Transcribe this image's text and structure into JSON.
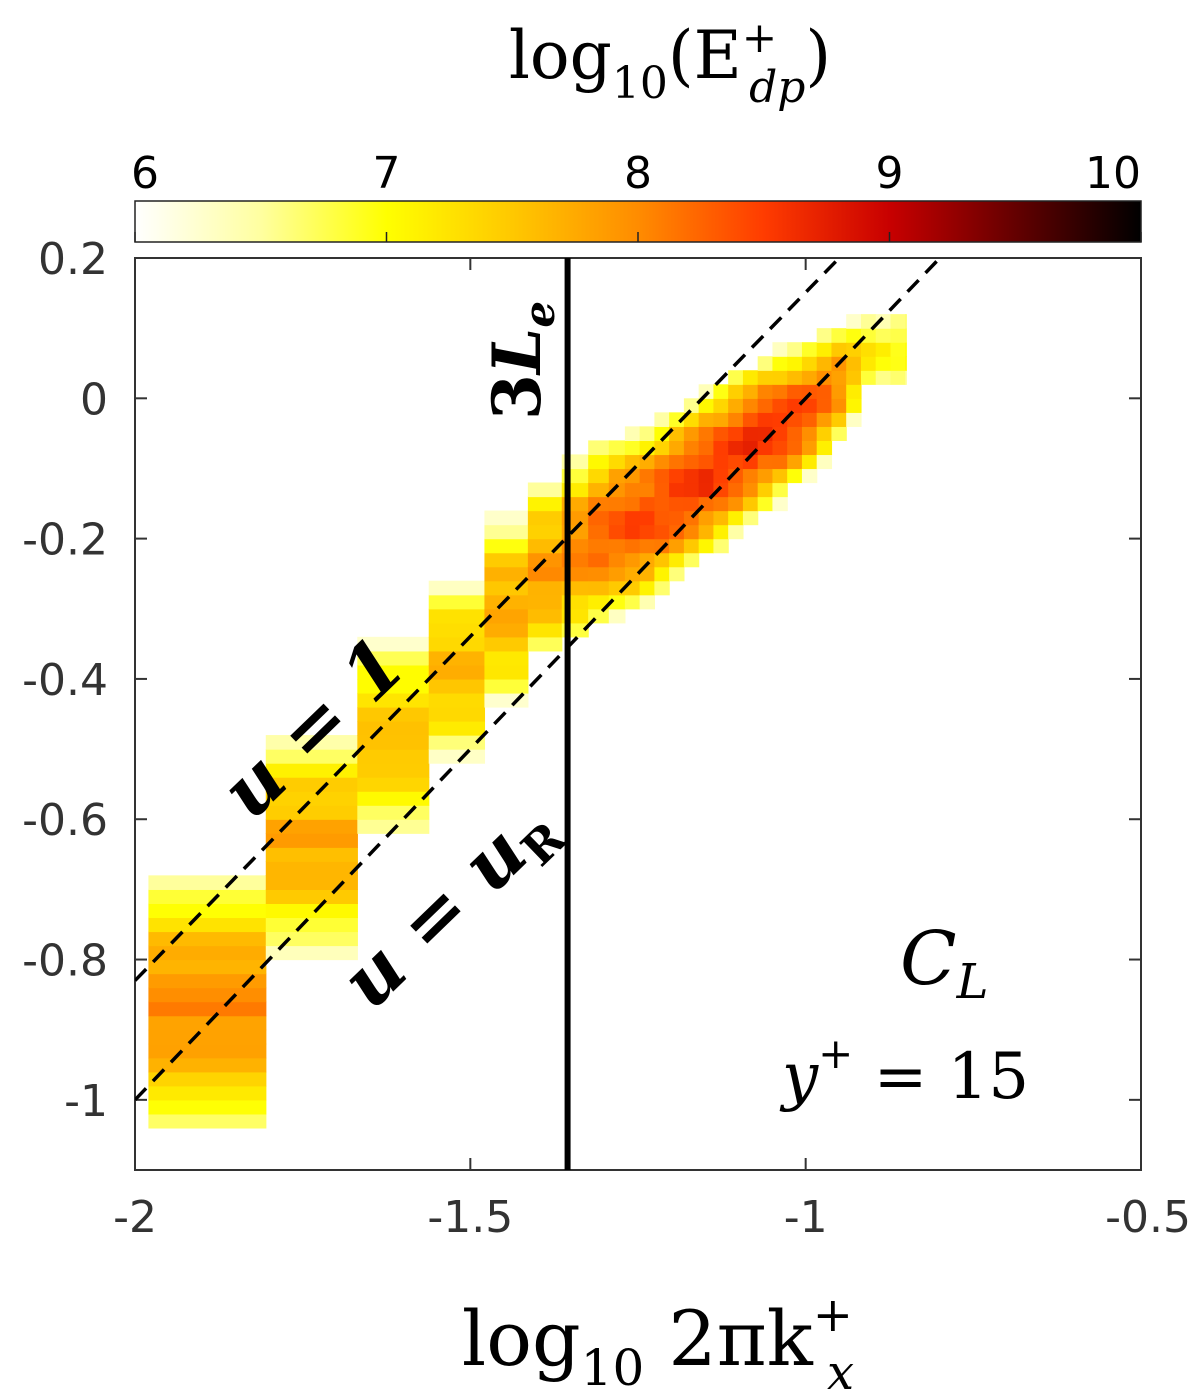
{
  "chart_data": {
    "type": "heatmap",
    "title": "",
    "xlabel": {
      "main": "log",
      "sub": "10",
      "mid": " 2πk",
      "sup": "+",
      "sub2": "x"
    },
    "ylabel": "",
    "xlim": [
      -2,
      -0.5
    ],
    "ylim": [
      -1.1,
      0.2
    ],
    "xticks": [
      -2,
      -1.5,
      -1,
      -0.5
    ],
    "xtick_labels": [
      "-2",
      "-1.5",
      "-1",
      "-0.5"
    ],
    "yticks": [
      0.2,
      0,
      -0.2,
      -0.4,
      -0.6,
      -0.8,
      -1
    ],
    "ytick_labels": [
      "0.2",
      "0",
      "-0.2",
      "-0.4",
      "-0.6",
      "-0.8",
      "-1"
    ],
    "colorbar": {
      "title": {
        "main": "log",
        "sub": "10",
        "open": "(E",
        "sup": "+",
        "sub2": "dp",
        "close": ")"
      },
      "range": [
        6,
        10
      ],
      "ticks": [
        6,
        7,
        8,
        9,
        10
      ],
      "tick_labels": [
        "6",
        "7",
        "8",
        "9",
        "10"
      ],
      "colormap": [
        "#ffffff",
        "#ffffa0",
        "#ffff00",
        "#ffc800",
        "#ff8c00",
        "#ff3c00",
        "#c80000",
        "#640000",
        "#000000"
      ]
    },
    "lines": [
      {
        "label": {
          "lhs": "u",
          "eq": " = ",
          "rhs": "1"
        },
        "style": "dashed",
        "points": [
          [
            -2,
            -0.83
          ],
          [
            -0.95,
            0.2
          ]
        ]
      },
      {
        "label": {
          "lhs": "u",
          "eq": " = ",
          "rhs": "u",
          "rhs_sub": "R"
        },
        "style": "dashed",
        "points": [
          [
            -2,
            -1.0
          ],
          [
            -0.8,
            0.2
          ]
        ]
      },
      {
        "label": {
          "num": "3",
          "sym": "L",
          "sym_sub": "e"
        },
        "style": "solid",
        "x": -1.355
      }
    ],
    "annotations": {
      "case": {
        "sym": "C",
        "sub": "L"
      },
      "yplus": {
        "sym": "y",
        "sup": "+",
        "rest": " = 15"
      }
    },
    "ridge": [
      [
        -1.95,
        -0.85,
        8.0
      ],
      [
        -1.9,
        -0.87,
        8.0
      ],
      [
        -1.85,
        -0.84,
        7.9
      ],
      [
        -1.78,
        -0.68,
        7.8
      ],
      [
        -1.72,
        -0.62,
        7.7
      ],
      [
        -1.65,
        -0.53,
        7.6
      ],
      [
        -1.58,
        -0.44,
        7.5
      ],
      [
        -1.5,
        -0.37,
        7.6
      ],
      [
        -1.43,
        -0.28,
        7.8
      ],
      [
        -1.37,
        -0.23,
        7.9
      ],
      [
        -1.3,
        -0.19,
        8.3
      ],
      [
        -1.24,
        -0.17,
        8.4
      ],
      [
        -1.18,
        -0.13,
        8.5
      ],
      [
        -1.12,
        -0.09,
        8.6
      ],
      [
        -1.06,
        -0.05,
        8.6
      ],
      [
        -1.0,
        -0.02,
        8.4
      ],
      [
        -0.95,
        0.02,
        8.0
      ],
      [
        -0.9,
        0.07,
        7.0
      ]
    ]
  }
}
